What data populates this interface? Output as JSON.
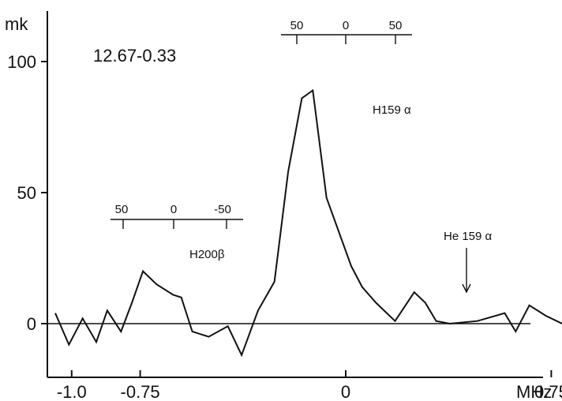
{
  "chart_data": {
    "type": "line",
    "source_label": "12.67-0.33",
    "ylabel": "mk",
    "xlabel": "MHz",
    "x_ticks": [
      {
        "value": -1.0,
        "label": "-1.0"
      },
      {
        "value": -0.75,
        "label": "-0.75"
      },
      {
        "value": 0.0,
        "label": "0"
      },
      {
        "value": 0.75,
        "label": "0.75"
      }
    ],
    "y_ticks": [
      {
        "value": 0,
        "label": "0"
      },
      {
        "value": 50,
        "label": "50"
      },
      {
        "value": 100,
        "label": "100"
      }
    ],
    "xlim": [
      -1.08,
      1.0
    ],
    "ylim": [
      -20,
      120
    ],
    "series": [
      {
        "x": [
          -1.06,
          -1.01,
          -0.96,
          -0.91,
          -0.87,
          -0.82,
          -0.78,
          -0.74,
          -0.69,
          -0.63,
          -0.6,
          -0.56,
          -0.5,
          -0.43,
          -0.38,
          -0.32,
          -0.26,
          -0.21,
          -0.16,
          -0.12,
          -0.07,
          0.02,
          0.06,
          0.11,
          0.18,
          0.25,
          0.29,
          0.33,
          0.38,
          0.48,
          0.58,
          0.62,
          0.67,
          0.73,
          0.79,
          0.85,
          0.9
        ],
        "y": [
          4,
          -8,
          2,
          -7,
          5,
          -3,
          8,
          20,
          15,
          11,
          10,
          -3,
          -5,
          -1,
          -12,
          5,
          16,
          58,
          86,
          89,
          48,
          22,
          14,
          8,
          1,
          12,
          8,
          1,
          0,
          1,
          4,
          -3,
          7,
          3,
          0,
          0,
          0
        ]
      }
    ],
    "annotations": [
      {
        "label": "H159 α",
        "type": "line-id"
      },
      {
        "label": "H200β",
        "type": "line-id"
      },
      {
        "label": "He 159 α",
        "type": "line-id",
        "arrow": true
      }
    ],
    "velocity_scales": [
      {
        "name": "H159α",
        "tick_labels": [
          "50",
          "0",
          "50"
        ]
      },
      {
        "name": "H200β",
        "tick_labels": [
          "50",
          "0",
          "-50"
        ]
      }
    ]
  }
}
